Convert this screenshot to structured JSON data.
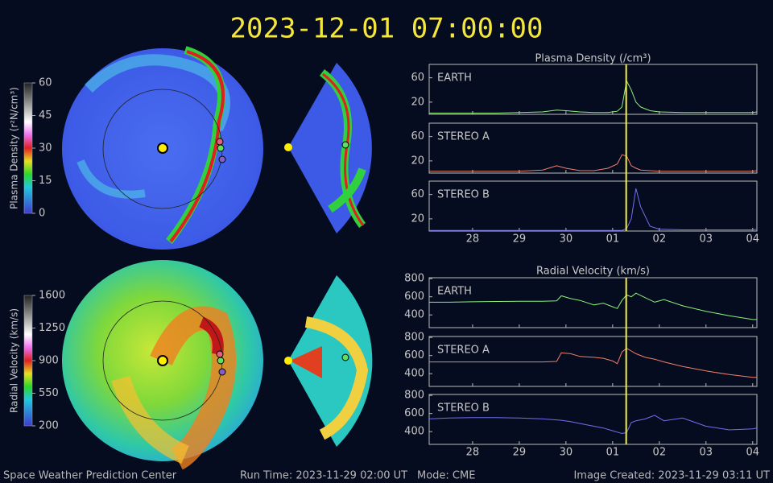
{
  "header": {
    "time": "2023-12-01 07:00:00"
  },
  "footer": {
    "org": "Space Weather Prediction Center",
    "run": "Run Time: 2023-11-29 02:00 UT",
    "mode": "Mode: CME",
    "created": "Image Created: 2023-11-29 03:11 UT"
  },
  "colorbars": [
    {
      "label": "Plasma Density (r²N/cm³)",
      "lim": [
        0,
        60
      ],
      "ticks": [
        0,
        15,
        30,
        45,
        60
      ]
    },
    {
      "label": "Radial Velocity (km/s)",
      "lim": [
        200,
        1600
      ],
      "ticks": [
        200,
        550,
        900,
        1250,
        1600
      ]
    }
  ],
  "chart_data": [
    {
      "type": "line",
      "title": "Plasma Density (/cm³)",
      "x": [
        27.07,
        27.5,
        28,
        28.5,
        29,
        29.5,
        29.8,
        30,
        30.3,
        30.6,
        30.9,
        31.1,
        31.2,
        31.3,
        31.4,
        31.5,
        31.6,
        31.8,
        32,
        32.5,
        33,
        33.5,
        34,
        34.09
      ],
      "xlim": [
        27.07,
        34.09
      ],
      "xticks": [
        28,
        29,
        30,
        {
          "value": 31,
          "label": "01"
        },
        {
          "value": 32,
          "label": "02"
        },
        {
          "value": 33,
          "label": "03"
        },
        {
          "value": 34,
          "label": "04"
        }
      ],
      "marker_x": 31.29,
      "panels": [
        {
          "name": "EARTH",
          "color": "#8cf07a",
          "ylim": [
            0,
            82
          ],
          "yticks": [
            20,
            60
          ],
          "values": [
            2,
            2,
            2,
            2,
            3,
            4,
            7,
            6,
            4,
            3,
            3,
            5,
            12,
            55,
            40,
            20,
            12,
            6,
            4,
            3,
            3,
            3,
            3,
            4
          ]
        },
        {
          "name": "STEREO A",
          "color": "#f0806a",
          "ylim": [
            0,
            82
          ],
          "yticks": [
            20,
            60
          ],
          "values": [
            3,
            3,
            3,
            3,
            3,
            5,
            12,
            8,
            4,
            4,
            8,
            15,
            30,
            28,
            12,
            8,
            5,
            4,
            3,
            3,
            3,
            3,
            3,
            4
          ]
        },
        {
          "name": "STEREO B",
          "color": "#7070f0",
          "ylim": [
            0,
            82
          ],
          "yticks": [
            20,
            60
          ],
          "values": [
            1,
            1,
            1,
            1,
            1,
            1,
            1,
            1,
            1,
            1,
            1,
            1,
            1,
            4,
            20,
            70,
            40,
            8,
            3,
            2,
            2,
            2,
            2,
            3
          ]
        }
      ]
    },
    {
      "type": "line",
      "title": "Radial Velocity (km/s)",
      "x": [
        27.07,
        27.5,
        28,
        28.5,
        29,
        29.5,
        29.8,
        29.9,
        30.1,
        30.3,
        30.6,
        30.8,
        31.0,
        31.1,
        31.2,
        31.3,
        31.4,
        31.5,
        31.7,
        31.9,
        32.1,
        32.5,
        33,
        33.5,
        34,
        34.09
      ],
      "xlim": [
        27.07,
        34.09
      ],
      "xticks": [
        28,
        29,
        30,
        {
          "value": 31,
          "label": "01"
        },
        {
          "value": 32,
          "label": "02"
        },
        {
          "value": 33,
          "label": "03"
        },
        {
          "value": 34,
          "label": "04"
        }
      ],
      "marker_x": 31.29,
      "panels": [
        {
          "name": "EARTH",
          "color": "#8cf07a",
          "ylim": [
            260,
            810
          ],
          "yticks": [
            400,
            600,
            800
          ],
          "values": [
            540,
            540,
            545,
            548,
            550,
            550,
            555,
            610,
            580,
            560,
            510,
            530,
            490,
            470,
            560,
            620,
            600,
            640,
            590,
            540,
            570,
            500,
            440,
            390,
            350,
            350
          ]
        },
        {
          "name": "STEREO A",
          "color": "#f0806a",
          "ylim": [
            260,
            810
          ],
          "yticks": [
            400,
            600,
            800
          ],
          "values": [
            530,
            530,
            530,
            530,
            530,
            530,
            535,
            630,
            620,
            590,
            580,
            570,
            540,
            510,
            640,
            680,
            650,
            620,
            580,
            560,
            530,
            480,
            430,
            390,
            360,
            360
          ]
        },
        {
          "name": "STEREO B",
          "color": "#7070f0",
          "ylim": [
            260,
            810
          ],
          "yticks": [
            400,
            600,
            800
          ],
          "values": [
            540,
            550,
            555,
            555,
            550,
            540,
            530,
            525,
            510,
            490,
            460,
            440,
            410,
            395,
            380,
            390,
            500,
            520,
            540,
            580,
            520,
            550,
            460,
            420,
            430,
            440
          ]
        }
      ]
    }
  ]
}
